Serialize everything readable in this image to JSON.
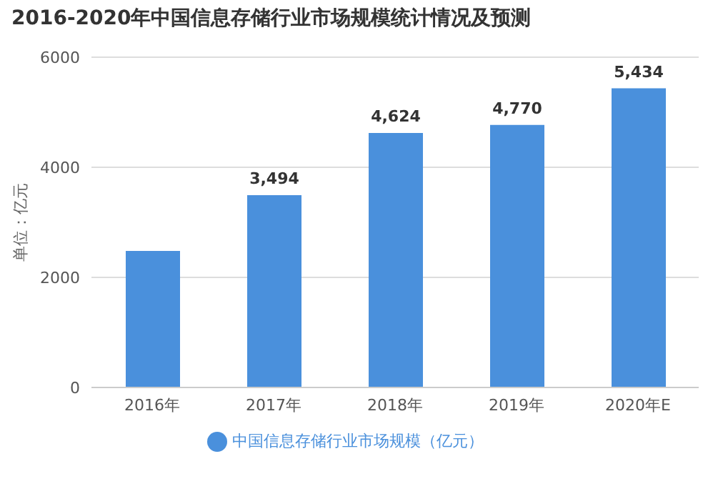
{
  "chart_data": {
    "type": "bar",
    "title": "2016-2020年中国信息存储行业市场规模统计情况及预测",
    "ylabel": "单位：亿元",
    "categories": [
      "2016年",
      "2017年",
      "2018年",
      "2019年",
      "2020年E"
    ],
    "series": [
      {
        "name": "中国信息存储行业市场规模（亿元）",
        "color": "#4a90dc",
        "values": [
          2480,
          3494,
          4624,
          4770,
          5434
        ],
        "value_labels": [
          null,
          "3,494",
          "4,624",
          "4,770",
          "5,434"
        ]
      }
    ],
    "ylim": [
      0,
      6000
    ],
    "yticks": [
      0,
      2000,
      4000,
      6000
    ],
    "grid": "y",
    "legend": "bottom"
  }
}
